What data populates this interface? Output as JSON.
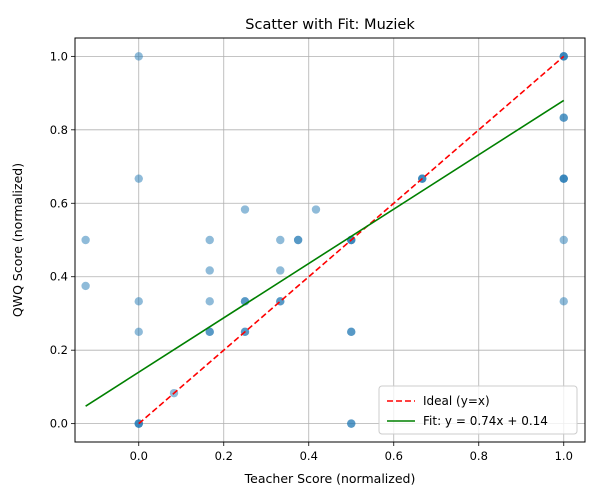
{
  "chart_data": {
    "type": "scatter",
    "title": "Scatter with Fit: Muziek",
    "xlabel": "Teacher Score (normalized)",
    "ylabel": "QWQ Score (normalized)",
    "xlim": [
      -0.15,
      1.05
    ],
    "ylim": [
      -0.05,
      1.05
    ],
    "xticks": [
      0.0,
      0.2,
      0.4,
      0.6,
      0.8,
      1.0
    ],
    "xtick_labels": [
      "0.0",
      "0.2",
      "0.4",
      "0.6",
      "0.8",
      "1.0"
    ],
    "yticks": [
      0.0,
      0.2,
      0.4,
      0.6,
      0.8,
      1.0
    ],
    "ytick_labels": [
      "0.0",
      "0.2",
      "0.4",
      "0.6",
      "0.8",
      "1.0"
    ],
    "grid": true,
    "legend_position": "lower-right",
    "points": {
      "color": "#1f77b4",
      "x": [
        -0.125,
        -0.125,
        0.0,
        0.0,
        0.0,
        0.0,
        0.0,
        0.0,
        0.0,
        0.083,
        0.167,
        0.167,
        0.167,
        0.167,
        0.167,
        0.25,
        0.25,
        0.25,
        0.25,
        0.25,
        0.333,
        0.333,
        0.333,
        0.333,
        0.375,
        0.375,
        0.417,
        0.5,
        0.5,
        0.5,
        0.5,
        0.5,
        0.5,
        0.5,
        0.667,
        0.667,
        0.667,
        1.0,
        1.0,
        1.0,
        1.0,
        1.0,
        1.0,
        1.0,
        1.0,
        1.0,
        1.0
      ],
      "y": [
        0.5,
        0.375,
        1.0,
        0.667,
        0.333,
        0.25,
        0.0,
        0.0,
        0.0,
        0.083,
        0.5,
        0.417,
        0.333,
        0.25,
        0.25,
        0.583,
        0.333,
        0.333,
        0.25,
        0.25,
        0.5,
        0.417,
        0.333,
        0.333,
        0.5,
        0.5,
        0.583,
        0.5,
        0.5,
        0.5,
        0.25,
        0.25,
        0.0,
        0.0,
        0.667,
        0.667,
        0.667,
        1.0,
        1.0,
        1.0,
        0.833,
        0.833,
        0.667,
        0.667,
        0.667,
        0.5,
        0.333
      ]
    },
    "series": [
      {
        "name": "Ideal (y=x)",
        "color": "#ff0000",
        "style": "dashed",
        "slope": 1.0,
        "intercept": 0.0,
        "x_range": [
          0.0,
          1.0
        ]
      },
      {
        "name": "Fit: y = 0.74x + 0.14",
        "color": "#008000",
        "style": "solid",
        "slope": 0.74,
        "intercept": 0.14,
        "x_range": [
          -0.125,
          1.0
        ]
      }
    ]
  }
}
